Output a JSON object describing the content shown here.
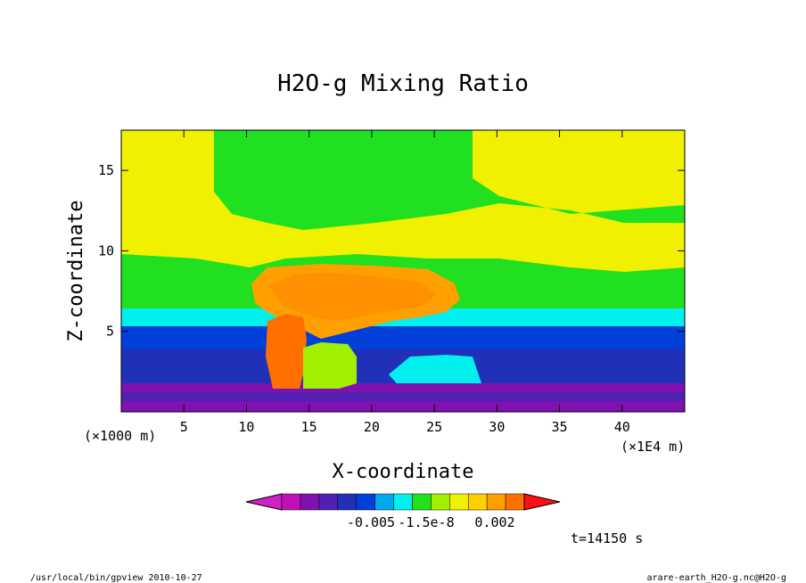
{
  "chart_data": {
    "type": "heatmap",
    "title": "H2O-g Mixing Ratio",
    "xlabel": "X-coordinate",
    "ylabel": "Z-coordinate",
    "x_unit_left": "(×1000 m)",
    "x_unit_right": "(×1E4 m)",
    "xlim": [
      0,
      45
    ],
    "ylim": [
      0,
      17.5
    ],
    "x_ticks": [
      5,
      10,
      15,
      20,
      25,
      30,
      35,
      40
    ],
    "y_ticks": [
      5,
      10,
      15
    ],
    "colorbar": {
      "colors": [
        "#d020c8",
        "#c010b8",
        "#8010b0",
        "#5020b0",
        "#2030b8",
        "#0040d8",
        "#00a8f0",
        "#00f0f0",
        "#20e020",
        "#a0f000",
        "#f0f000",
        "#ffd000",
        "#ffa000",
        "#ff7000",
        "#ff1010"
      ],
      "tick_labels": [
        "-0.005",
        "-1.5e-8",
        "0.002"
      ]
    },
    "time_label": "t=14150 s"
  },
  "footer": {
    "left": "/usr/local/bin/gpview  2010-10-27",
    "right": "arare-earth_H2O-g.nc@H2O-g"
  }
}
